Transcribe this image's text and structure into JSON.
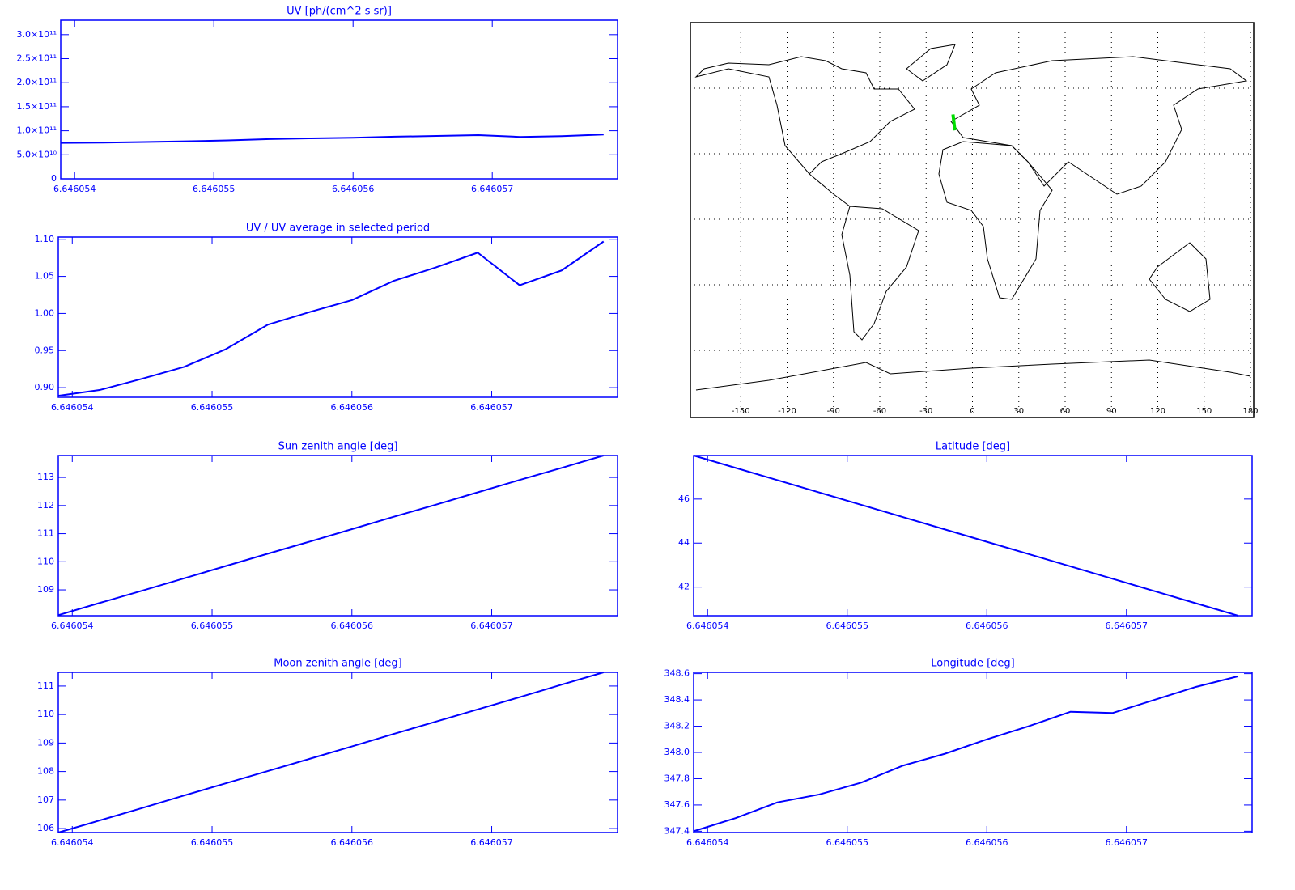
{
  "chart_data": [
    {
      "type": "line",
      "title": "UV [ph/(cm^2 s sr)]",
      "x": [
        6.6460539,
        6.6460542,
        6.6460545,
        6.6460548,
        6.6460551,
        6.6460554,
        6.6460557,
        6.646056,
        6.6460563,
        6.6460566,
        6.6460569,
        6.6460572,
        6.6460575,
        6.6460578
      ],
      "series": [
        {
          "color": "#0000ff",
          "values": [
            74700000000,
            75300000000,
            76600000000,
            78000000000,
            80000000000,
            82700000000,
            84200000000,
            85500000000,
            87700000000,
            89200000000,
            90900000000,
            87200000000,
            88900000000,
            92100000000
          ]
        }
      ],
      "xlim": [
        6.6460539,
        6.6460579
      ],
      "xticks": [
        6.646054,
        6.646055,
        6.646056,
        6.646057
      ],
      "ylim": [
        0,
        330000000000
      ],
      "yticks": [
        0,
        {
          "value": 50000000000,
          "label": "5.0×10¹⁰"
        },
        {
          "value": 100000000000,
          "label": "1.0×10¹¹"
        },
        {
          "value": 150000000000,
          "label": "1.5×10¹¹"
        },
        {
          "value": 200000000000,
          "label": "2.0×10¹¹"
        },
        {
          "value": 250000000000,
          "label": "2.5×10¹¹"
        },
        {
          "value": 300000000000,
          "label": "3.0×10¹¹"
        }
      ]
    },
    {
      "type": "line",
      "title": "UV / UV average in selected period",
      "x": [
        6.6460539,
        6.6460542,
        6.6460545,
        6.6460548,
        6.6460551,
        6.6460554,
        6.6460557,
        6.646056,
        6.6460563,
        6.6460566,
        6.6460569,
        6.6460572,
        6.6460575,
        6.6460578
      ],
      "series": [
        {
          "color": "#0000ff",
          "values": [
            0.889,
            0.897,
            0.912,
            0.928,
            0.952,
            0.985,
            1.002,
            1.018,
            1.044,
            1.062,
            1.082,
            1.038,
            1.058,
            1.097
          ]
        }
      ],
      "xlim": [
        6.6460539,
        6.6460579
      ],
      "xticks": [
        6.646054,
        6.646055,
        6.646056,
        6.646057
      ],
      "ylim": [
        0.887,
        1.103
      ],
      "yticks": [
        {
          "value": 0.9,
          "label": "0.90"
        },
        0.95,
        {
          "value": 1,
          "label": "1.00"
        },
        1.05,
        {
          "value": 1.1,
          "label": "1.10"
        }
      ]
    },
    {
      "type": "map",
      "x": [
        -12.6,
        -11.39
      ],
      "series": [
        {
          "color": "#00dd00",
          "values": [
            47.98,
            40.7
          ]
        }
      ],
      "xlim": [
        -180,
        180
      ],
      "xticks": [
        -150,
        -120,
        -90,
        -60,
        -30,
        0,
        30,
        60,
        90,
        120,
        150,
        180
      ],
      "ylim": [
        -90,
        90
      ],
      "yticks": [
        -60,
        -30,
        0,
        30,
        60
      ],
      "grid": true
    },
    {
      "type": "line",
      "title": "Sun zenith angle [deg]",
      "x": [
        6.6460539,
        6.6460542,
        6.6460545,
        6.6460548,
        6.6460551,
        6.6460554,
        6.6460557,
        6.646056,
        6.6460563,
        6.6460566,
        6.6460569,
        6.6460572,
        6.6460575,
        6.6460578
      ],
      "series": [
        {
          "color": "#0000ff",
          "values": [
            108.1,
            108.54,
            108.97,
            109.41,
            109.85,
            110.29,
            110.72,
            111.16,
            111.6,
            112.03,
            112.47,
            112.91,
            113.34,
            113.78
          ]
        }
      ],
      "xlim": [
        6.6460539,
        6.6460579
      ],
      "xticks": [
        6.646054,
        6.646055,
        6.646056,
        6.646057
      ],
      "ylim": [
        108.08,
        113.78
      ],
      "yticks": [
        109,
        110,
        111,
        112,
        113
      ]
    },
    {
      "type": "line",
      "title": "Latitude [deg]",
      "x": [
        6.6460539,
        6.6460542,
        6.6460545,
        6.6460548,
        6.6460551,
        6.6460554,
        6.6460557,
        6.646056,
        6.6460563,
        6.6460566,
        6.6460569,
        6.6460572,
        6.6460575,
        6.6460578
      ],
      "series": [
        {
          "color": "#0000ff",
          "values": [
            47.98,
            47.42,
            46.86,
            46.3,
            45.74,
            45.18,
            44.62,
            44.06,
            43.5,
            42.94,
            42.38,
            41.82,
            41.26,
            40.7
          ]
        }
      ],
      "xlim": [
        6.6460539,
        6.6460579
      ],
      "xticks": [
        6.646054,
        6.646055,
        6.646056,
        6.646057
      ],
      "ylim": [
        40.7,
        47.98
      ],
      "yticks": [
        42,
        44,
        46
      ]
    },
    {
      "type": "line",
      "title": "Moon zenith angle [deg]",
      "x": [
        6.6460539,
        6.6460542,
        6.6460545,
        6.6460548,
        6.6460551,
        6.6460554,
        6.6460557,
        6.646056,
        6.6460563,
        6.6460566,
        6.6460569,
        6.6460572,
        6.6460575,
        6.6460578
      ],
      "series": [
        {
          "color": "#0000ff",
          "values": [
            105.86,
            106.29,
            106.72,
            107.16,
            107.59,
            108.02,
            108.45,
            108.88,
            109.32,
            109.75,
            110.18,
            110.61,
            111.05,
            111.48
          ]
        }
      ],
      "xlim": [
        6.6460539,
        6.6460579
      ],
      "xticks": [
        6.646054,
        6.646055,
        6.646056,
        6.646057
      ],
      "ylim": [
        105.86,
        111.48
      ],
      "yticks": [
        106,
        107,
        108,
        109,
        110,
        111
      ]
    },
    {
      "type": "line",
      "title": "Longitude [deg]",
      "x": [
        6.6460539,
        6.6460542,
        6.6460545,
        6.6460548,
        6.6460551,
        6.6460554,
        6.6460557,
        6.646056,
        6.6460563,
        6.6460566,
        6.6460569,
        6.6460572,
        6.6460575,
        6.6460578
      ],
      "series": [
        {
          "color": "#0000ff",
          "values": [
            347.4,
            347.5,
            347.62,
            347.68,
            347.77,
            347.9,
            347.99,
            348.1,
            348.2,
            348.31,
            348.3,
            348.4,
            348.5,
            348.58
          ]
        }
      ],
      "xlim": [
        6.6460539,
        6.6460579
      ],
      "xticks": [
        6.646054,
        6.646055,
        6.646056,
        6.646057
      ],
      "ylim": [
        347.39,
        348.61
      ],
      "yticks": [
        347.4,
        347.6,
        347.8,
        {
          "value": 348,
          "label": "348.0"
        },
        348.2,
        348.4,
        348.6
      ]
    }
  ]
}
